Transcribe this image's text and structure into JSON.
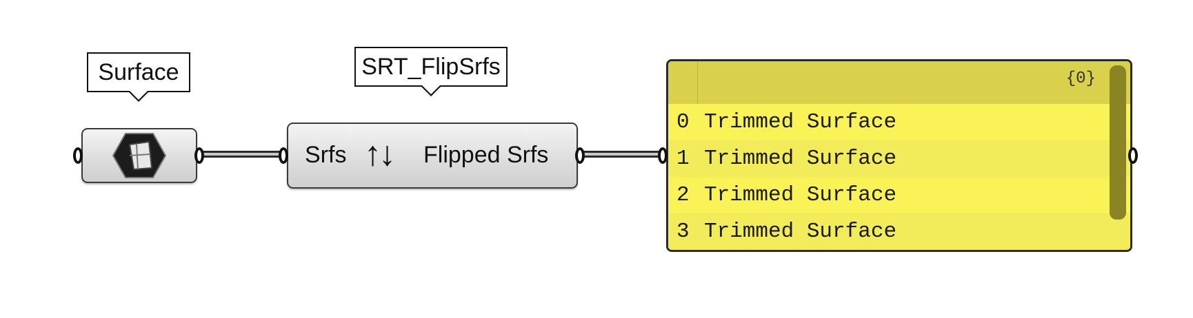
{
  "canvas": {
    "background": "#ffffff",
    "wire_color": "#c8c8c8"
  },
  "surface_param": {
    "tag_label": "Surface",
    "icon": "surface-icon"
  },
  "flip_component": {
    "tag_label": "SRT_FlipSrfs",
    "input_label": "Srfs",
    "output_label": "Flipped Srfs",
    "icon": "up-down-arrows-icon",
    "icon_glyph": "↑↓"
  },
  "panel": {
    "path": "{0}",
    "background": "#faf357",
    "header_color": "#d9d04c",
    "rows": [
      {
        "index": "0",
        "value": "Trimmed Surface"
      },
      {
        "index": "1",
        "value": "Trimmed Surface"
      },
      {
        "index": "2",
        "value": "Trimmed Surface"
      },
      {
        "index": "3",
        "value": "Trimmed Surface"
      }
    ]
  }
}
